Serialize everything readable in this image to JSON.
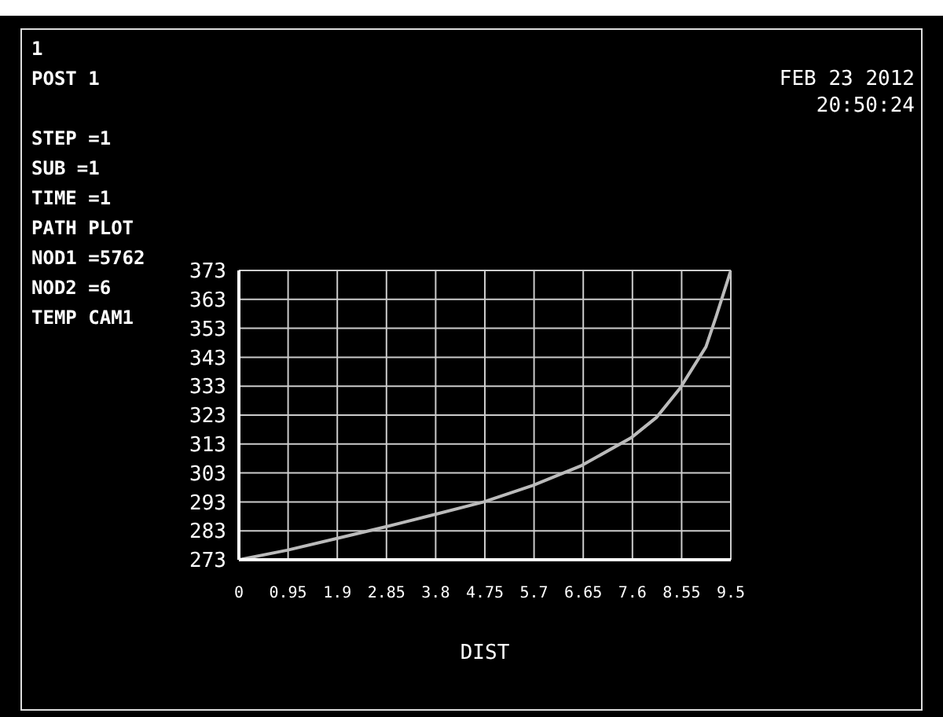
{
  "chart_data": {
    "type": "line",
    "xlabel": "DIST",
    "annotations": [
      "1",
      "POST 1",
      "STEP =1",
      "SUB =1",
      "TIME =1",
      "PATH PLOT",
      "NOD1 =5762",
      "NOD2 =6",
      "TEMP CAM1",
      "FEB 23 2012",
      "20:50:24"
    ],
    "x": [
      0,
      0.93,
      1.9,
      2.84,
      3.79,
      4.73,
      5.68,
      6.62,
      7.57,
      8.07,
      8.52,
      9.02,
      9.22,
      9.5
    ],
    "series": [
      {
        "color": "#bbbbbb",
        "values": [
          273,
          276.3,
          280.4,
          284.4,
          288.7,
          293,
          298.7,
          305.6,
          315.1,
          322.3,
          332.3,
          346.6,
          357.3,
          373
        ]
      }
    ],
    "xlim": [
      0,
      9.5
    ],
    "xticks": [
      0,
      0.95,
      1.9,
      2.85,
      3.8,
      4.75,
      5.7,
      6.65,
      7.6,
      8.55,
      9.5
    ],
    "ylim": [
      273,
      373
    ],
    "yticks": [
      273,
      283,
      293,
      303,
      313,
      323,
      333,
      343,
      353,
      363,
      373
    ],
    "grid": true,
    "marker": "none",
    "line_style": "solid"
  }
}
